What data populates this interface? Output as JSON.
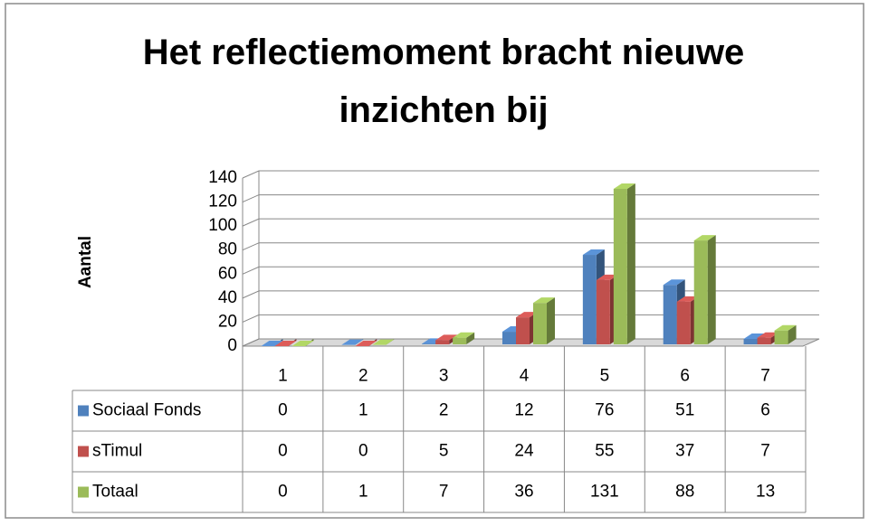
{
  "chart_data": {
    "type": "bar3d",
    "title": "Het reflectiemoment bracht nieuwe inzichten bij",
    "y_label": "Aantal",
    "categories": [
      "1",
      "2",
      "3",
      "4",
      "5",
      "6",
      "7"
    ],
    "series": [
      {
        "name": "Sociaal Fonds",
        "color": "#4f81bd",
        "values": [
          0,
          1,
          2,
          12,
          76,
          51,
          6
        ]
      },
      {
        "name": "sTimul",
        "color": "#c0504d",
        "values": [
          0,
          0,
          5,
          24,
          55,
          37,
          7
        ]
      },
      {
        "name": "Totaal",
        "color": "#9bbb59",
        "values": [
          0,
          1,
          7,
          36,
          131,
          88,
          13
        ]
      }
    ],
    "ylim": [
      0,
      140
    ],
    "yticks": [
      0,
      20,
      40,
      60,
      80,
      100,
      120,
      140
    ],
    "grid": true,
    "data_table": true
  }
}
